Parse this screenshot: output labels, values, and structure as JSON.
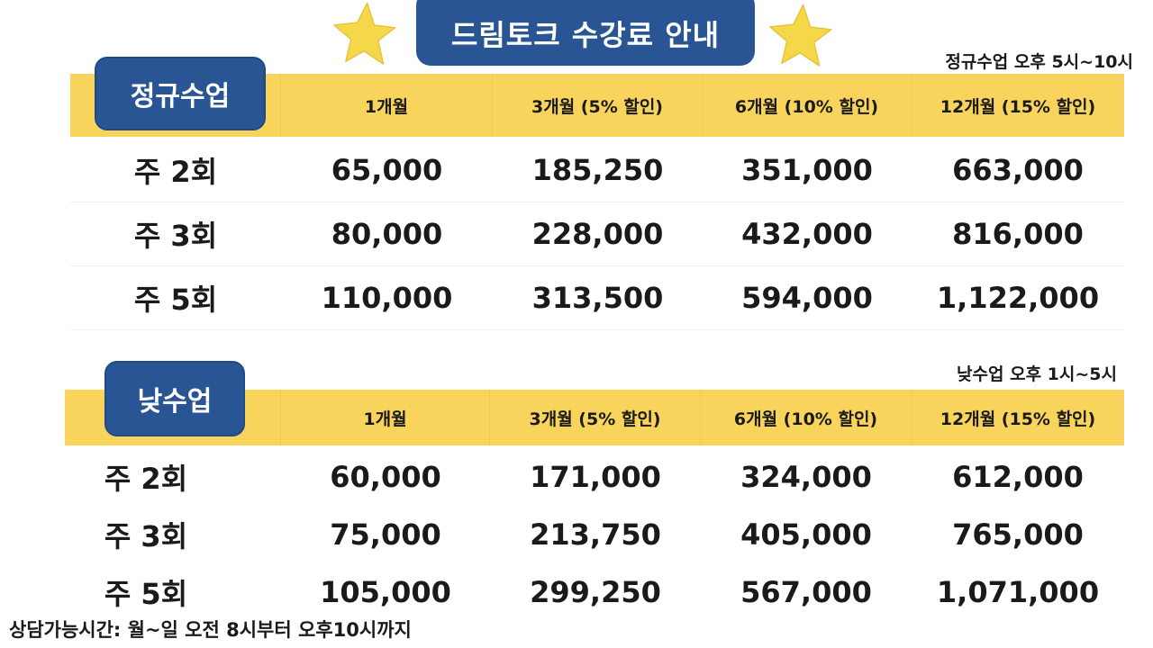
{
  "title": "드림토크 수강료 안내",
  "colors": {
    "blue": "#2a5595",
    "yellow": "#f8d45c",
    "star": "#f5d84a"
  },
  "columns": [
    "1개월",
    "3개월 (5% 할인)",
    "6개월 (10% 할인)",
    "12개월 (15% 할인)"
  ],
  "regular": {
    "badge": "정규수업",
    "time": "정규수업 오후 5시~10시",
    "rows": [
      {
        "label": "주 2회",
        "values": [
          "65,000",
          "185,250",
          "351,000",
          "663,000"
        ]
      },
      {
        "label": "주 3회",
        "values": [
          "80,000",
          "228,000",
          "432,000",
          "816,000"
        ]
      },
      {
        "label": "주 5회",
        "values": [
          "110,000",
          "313,500",
          "594,000",
          "1,122,000"
        ]
      }
    ]
  },
  "day": {
    "badge": "낮수업",
    "time": "낮수업 오후 1시~5시",
    "rows": [
      {
        "label": "주 2회",
        "values": [
          "60,000",
          "171,000",
          "324,000",
          "612,000"
        ]
      },
      {
        "label": "주 3회",
        "values": [
          "75,000",
          "213,750",
          "405,000",
          "765,000"
        ]
      },
      {
        "label": "주 5회",
        "values": [
          "105,000",
          "299,250",
          "567,000",
          "1,071,000"
        ]
      }
    ]
  },
  "footer": "상담가능시간: 월~일 오전 8시부터 오후10시까지"
}
